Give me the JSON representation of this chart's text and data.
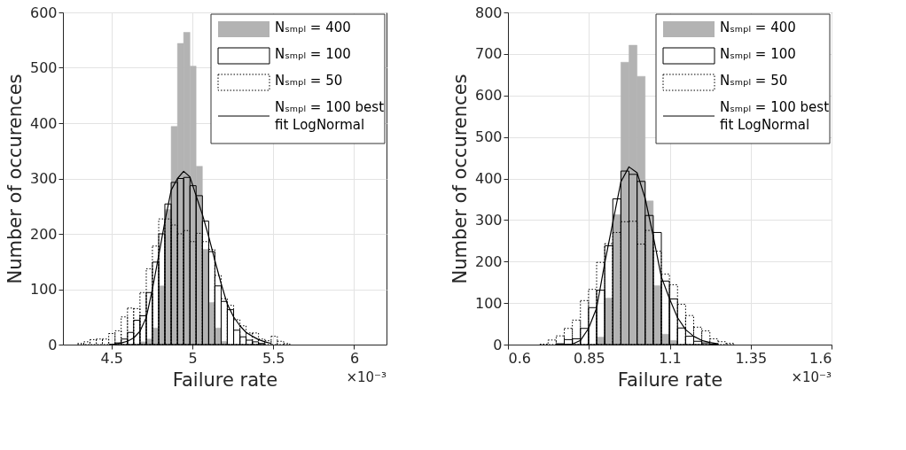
{
  "chart_data": [
    {
      "type": "histogram",
      "xlabel": "Failure rate",
      "ylabel": "Number of occurences",
      "annotations": [
        "×10⁻³"
      ],
      "xlim": [
        4.2,
        6.2
      ],
      "xticks": [
        4.5,
        5,
        5.5,
        6
      ],
      "ylim": [
        0,
        600
      ],
      "yticks": [
        0,
        100,
        200,
        300,
        400,
        500,
        600
      ],
      "grid": true,
      "legend": "top right",
      "bins": [
        4.29,
        4.329,
        4.367,
        4.406,
        4.444,
        4.483,
        4.522,
        4.56,
        4.599,
        4.637,
        4.676,
        4.715,
        4.753,
        4.792,
        4.83,
        4.869,
        4.908,
        4.946,
        4.985,
        5.023,
        5.062,
        5.101,
        5.139,
        5.178,
        5.216,
        5.255,
        5.294,
        5.332,
        5.371,
        5.409,
        5.448,
        5.487,
        5.525,
        5.564,
        5.602
      ],
      "series": [
        {
          "name": "Nₛₘₚₗ = 400",
          "color": "#b3b3b3",
          "values": [
            null,
            null,
            null,
            null,
            null,
            null,
            null,
            null,
            null,
            null,
            5,
            10,
            30,
            106,
            244,
            394,
            544,
            564,
            503,
            322,
            172,
            76,
            30,
            6,
            null,
            null,
            null,
            null,
            null,
            null,
            null,
            null,
            null,
            null
          ]
        },
        {
          "name": "Nₛₘₚₗ = 100",
          "color": "#000000",
          "line_style": "solid",
          "values": [
            null,
            null,
            null,
            null,
            null,
            null,
            3,
            10,
            22,
            44,
            52,
            94,
            149,
            200,
            254,
            293,
            300,
            302,
            287,
            269,
            223,
            168,
            106,
            78,
            63,
            26,
            14,
            8,
            5,
            2,
            null,
            null,
            null,
            null
          ]
        },
        {
          "name": "Nₛₘₚₗ = 50",
          "color": "#000000",
          "line_style": "dotted",
          "values": [
            2,
            5,
            9,
            10,
            10,
            20,
            25,
            50,
            66,
            65,
            94,
            137,
            178,
            227,
            227,
            216,
            200,
            206,
            186,
            201,
            186,
            172,
            125,
            83,
            71,
            45,
            34,
            21,
            21,
            10,
            7,
            15,
            6,
            2
          ]
        },
        {
          "name": "Nₛₘₚₗ = 100 best fit LogNormal",
          "type": "line",
          "color": "#000000",
          "line_style": "solid",
          "x": [
            4.483,
            4.522,
            4.56,
            4.599,
            4.637,
            4.676,
            4.715,
            4.753,
            4.792,
            4.83,
            4.869,
            4.908,
            4.946,
            4.985,
            5.023,
            5.062,
            5.101,
            5.139,
            5.178,
            5.216,
            5.255,
            5.294,
            5.332,
            5.371,
            5.409,
            5.448,
            5.487
          ],
          "values": [
            0,
            1,
            3,
            6,
            12,
            24,
            49,
            100,
            161,
            222,
            279,
            300,
            313,
            303,
            269,
            235,
            195,
            152,
            110,
            73,
            50,
            34,
            22,
            15,
            9,
            5,
            2
          ]
        }
      ]
    },
    {
      "type": "histogram",
      "xlabel": "Failure rate",
      "ylabel": "Number of occurences",
      "annotations": [
        "×10⁻³"
      ],
      "xlim": [
        0.6,
        1.6
      ],
      "xticks": [
        0.6,
        0.85,
        1.1,
        1.35,
        1.6
      ],
      "ylim": [
        0,
        800
      ],
      "yticks": [
        0,
        100,
        200,
        300,
        400,
        500,
        600,
        700,
        800
      ],
      "grid": true,
      "legend": "top right",
      "bins": [
        0.699,
        0.724,
        0.749,
        0.774,
        0.799,
        0.824,
        0.849,
        0.874,
        0.899,
        0.924,
        0.949,
        0.974,
        0.999,
        1.024,
        1.049,
        1.074,
        1.099,
        1.124,
        1.149,
        1.174,
        1.199,
        1.224,
        1.249,
        1.274,
        1.299
      ],
      "series": [
        {
          "name": "Nₛₘₚₗ = 400",
          "color": "#b3b3b3",
          "values": [
            null,
            null,
            null,
            null,
            null,
            null,
            null,
            18,
            112,
            313,
            680,
            721,
            646,
            346,
            142,
            25,
            10,
            null,
            null,
            null,
            null,
            null,
            null,
            null
          ]
        },
        {
          "name": "Nₛₘₚₗ = 100",
          "color": "#000000",
          "line_style": "solid",
          "values": [
            null,
            null,
            2,
            12,
            14,
            39,
            89,
            131,
            238,
            351,
            418,
            410,
            393,
            311,
            270,
            153,
            110,
            40,
            20,
            8,
            4,
            1,
            null,
            null
          ]
        },
        {
          "name": "Nₛₘₚₗ = 50",
          "color": "#000000",
          "line_style": "dotted",
          "values": [
            1,
            11,
            21,
            39,
            59,
            106,
            133,
            198,
            243,
            270,
            296,
            297,
            242,
            275,
            225,
            170,
            144,
            97,
            70,
            42,
            33,
            14,
            7,
            3
          ]
        },
        {
          "name": "Nₛₘₚₗ = 100 best fit LogNormal",
          "type": "line",
          "color": "#000000",
          "line_style": "solid",
          "x": [
            0.749,
            0.774,
            0.799,
            0.824,
            0.849,
            0.874,
            0.899,
            0.924,
            0.949,
            0.974,
            0.999,
            1.024,
            1.049,
            1.074,
            1.099,
            1.124,
            1.149,
            1.174,
            1.199,
            1.224,
            1.249
          ],
          "values": [
            0,
            0,
            1,
            10,
            39,
            88,
            196,
            294,
            392,
            428,
            414,
            352,
            261,
            163,
            111,
            65,
            36,
            20,
            10,
            5,
            2
          ]
        }
      ]
    }
  ]
}
